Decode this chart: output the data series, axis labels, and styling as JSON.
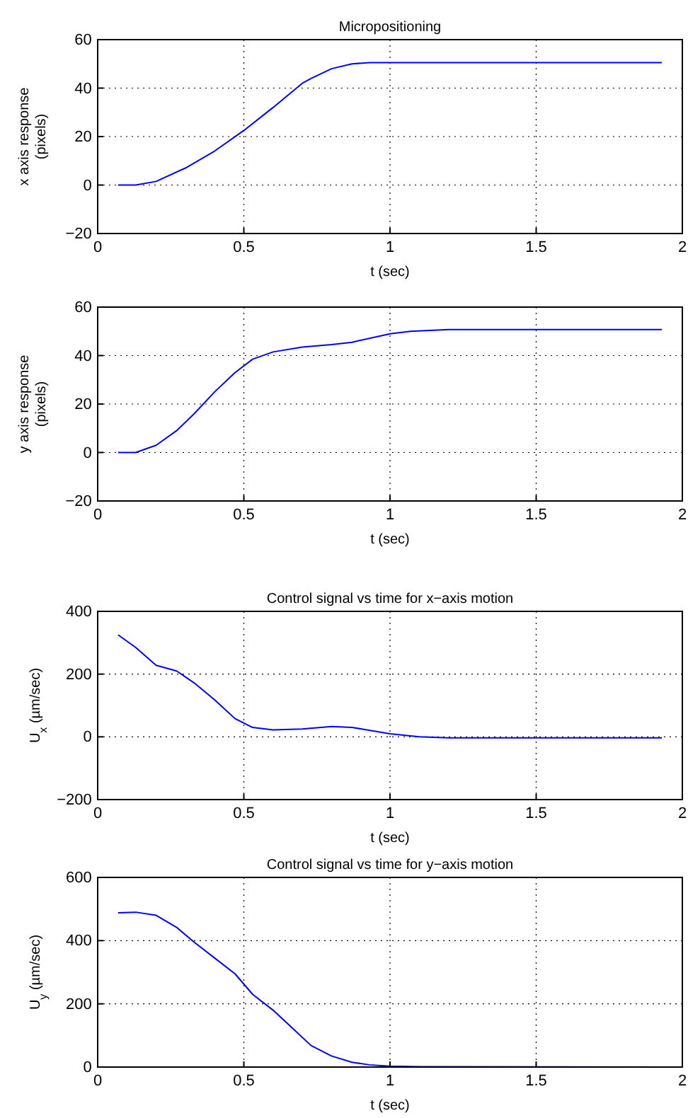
{
  "chart_data": [
    {
      "type": "line",
      "title": "Micropositioning",
      "xlabel": "t (sec)",
      "ylabel": "x axis response (pixels)",
      "xlim": [
        0,
        2
      ],
      "xticks": [
        0,
        0.5,
        1,
        1.5,
        2
      ],
      "ylim": [
        -20,
        60
      ],
      "yticks": [
        -20,
        0,
        20,
        40,
        60
      ],
      "grid": true,
      "series": [
        {
          "color": "#0000ff",
          "x": [
            0.07,
            0.13,
            0.2,
            0.3,
            0.4,
            0.5,
            0.6,
            0.7,
            0.73,
            0.8,
            0.87,
            0.93,
            1,
            1.93
          ],
          "values": [
            0,
            0,
            1.5,
            7,
            14,
            22.5,
            32,
            42,
            44,
            48,
            50,
            50.5,
            50.5,
            50.5
          ]
        }
      ]
    },
    {
      "type": "line",
      "xlabel": "t (sec)",
      "ylabel": "y axis response (pixels)",
      "xlim": [
        0,
        2
      ],
      "xticks": [
        0,
        0.5,
        1,
        1.5,
        2
      ],
      "ylim": [
        -20,
        60
      ],
      "yticks": [
        -20,
        0,
        20,
        40,
        60
      ],
      "grid": true,
      "series": [
        {
          "color": "#0000ff",
          "x": [
            0.07,
            0.13,
            0.2,
            0.27,
            0.33,
            0.4,
            0.47,
            0.53,
            0.6,
            0.7,
            0.8,
            0.87,
            1,
            1.07,
            1.2,
            1.93
          ],
          "values": [
            0,
            0,
            3,
            9,
            16,
            25,
            33,
            38.5,
            41.5,
            43.5,
            44.5,
            45.5,
            49,
            50,
            50.7,
            50.7
          ]
        }
      ]
    },
    {
      "type": "line",
      "title": "Control signal vs time for x−axis motion",
      "xlabel": "t (sec)",
      "ylabel": "U$_{x}$  (µm/sec)",
      "xlim": [
        0,
        2
      ],
      "xticks": [
        0,
        0.5,
        1,
        1.5,
        2
      ],
      "ylim": [
        -200,
        400
      ],
      "yticks": [
        -200,
        0,
        200,
        400
      ],
      "grid": true,
      "series": [
        {
          "color": "#0000ff",
          "x": [
            0.07,
            0.13,
            0.2,
            0.27,
            0.33,
            0.4,
            0.47,
            0.53,
            0.6,
            0.7,
            0.8,
            0.87,
            1,
            1.1,
            1.2,
            1.93
          ],
          "values": [
            325,
            285,
            228,
            210,
            172,
            118,
            58,
            30,
            22,
            25,
            33,
            30,
            10,
            0,
            -3,
            -3
          ]
        }
      ]
    },
    {
      "type": "line",
      "title": "Control signal vs time for y−axis motion",
      "xlabel": "t (sec)",
      "ylabel": "U$_{y}$  (µm/sec)",
      "xlim": [
        0,
        2
      ],
      "xticks": [
        0,
        0.5,
        1,
        1.5,
        2
      ],
      "ylim": [
        0,
        600
      ],
      "yticks": [
        0,
        200,
        400,
        600
      ],
      "grid": true,
      "series": [
        {
          "color": "#0000ff",
          "x": [
            0.07,
            0.13,
            0.2,
            0.27,
            0.33,
            0.4,
            0.47,
            0.53,
            0.6,
            0.67,
            0.73,
            0.8,
            0.87,
            0.93,
            1,
            1.1,
            1.93
          ],
          "values": [
            488,
            490,
            480,
            442,
            395,
            345,
            295,
            230,
            180,
            120,
            68,
            35,
            15,
            7,
            3,
            1,
            0
          ]
        }
      ]
    }
  ]
}
